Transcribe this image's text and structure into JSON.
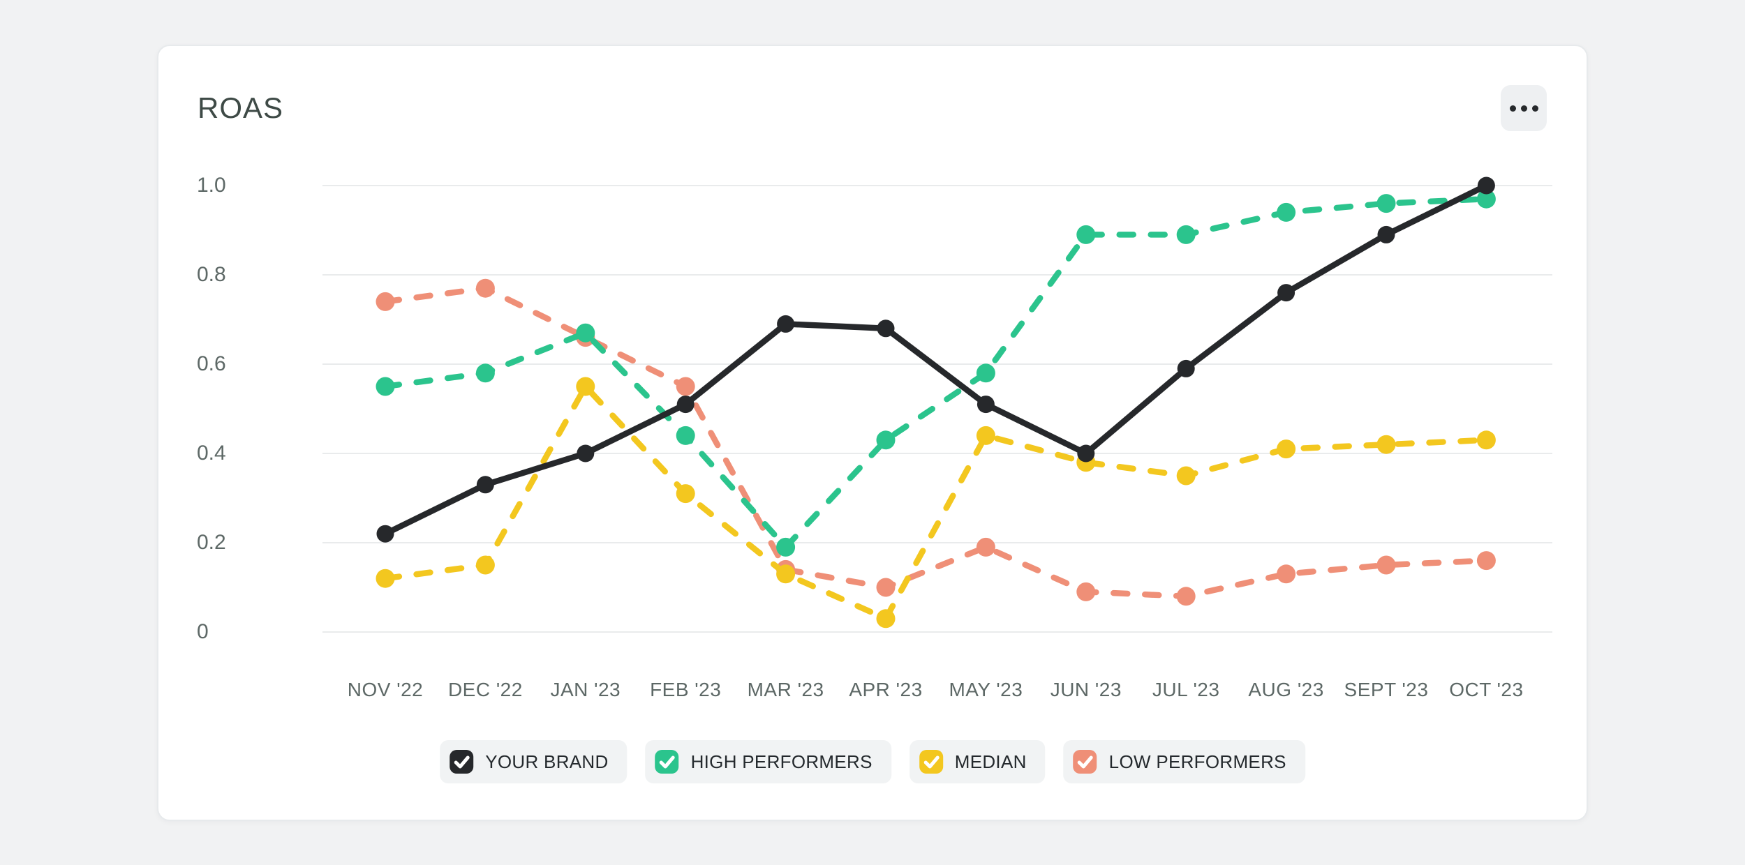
{
  "card": {
    "title": "ROAS"
  },
  "menu": {
    "icon": "ellipsis"
  },
  "chart_data": {
    "type": "line",
    "title": "ROAS",
    "categories": [
      "NOV '22",
      "DEC '22",
      "JAN '23",
      "FEB '23",
      "MAR '23",
      "APR '23",
      "MAY '23",
      "JUN '23",
      "JUL '23",
      "AUG '23",
      "SEPT '23",
      "OCT '23"
    ],
    "series": [
      {
        "name": "YOUR BRAND",
        "color": "#26282b",
        "line_style": "solid",
        "values": [
          0.22,
          0.33,
          0.4,
          0.51,
          0.69,
          0.68,
          0.51,
          0.4,
          0.59,
          0.76,
          0.89,
          1.0
        ]
      },
      {
        "name": "HIGH PERFORMERS",
        "color": "#2bc48d",
        "line_style": "dashed",
        "values": [
          0.55,
          0.58,
          0.67,
          0.44,
          0.19,
          0.43,
          0.58,
          0.89,
          0.89,
          0.94,
          0.96,
          0.97
        ]
      },
      {
        "name": "MEDIAN",
        "color": "#f3c71f",
        "line_style": "dashed",
        "values": [
          0.12,
          0.15,
          0.55,
          0.31,
          0.13,
          0.03,
          0.44,
          0.38,
          0.35,
          0.41,
          0.42,
          0.43
        ]
      },
      {
        "name": "LOW PERFORMERS",
        "color": "#ef8f77",
        "line_style": "dashed",
        "values": [
          0.74,
          0.77,
          0.66,
          0.55,
          0.14,
          0.1,
          0.19,
          0.09,
          0.08,
          0.13,
          0.15,
          0.16
        ]
      }
    ],
    "xlabel": "",
    "ylabel": "",
    "ylim": [
      0,
      1.0
    ],
    "yticks": [
      0,
      0.2,
      0.4,
      0.6,
      0.8,
      1.0
    ],
    "ytick_labels": [
      "0",
      "0.2",
      "0.4",
      "0.6",
      "0.8",
      "1.0"
    ],
    "grid": "horizontal",
    "legend_position": "bottom"
  },
  "legend": {
    "check_glyph": "✓",
    "items": [
      {
        "label": "YOUR BRAND",
        "color": "#26282b",
        "checked": true
      },
      {
        "label": "HIGH PERFORMERS",
        "color": "#2bc48d",
        "checked": true
      },
      {
        "label": "MEDIAN",
        "color": "#f3c71f",
        "checked": true
      },
      {
        "label": "LOW PERFORMERS",
        "color": "#ef8f77",
        "checked": true
      }
    ]
  },
  "colors": {
    "page_bg": "#f1f2f3",
    "card_bg": "#ffffff",
    "card_border": "#e7eaec",
    "gridline": "#e9ebec",
    "axis_label": "#5d6866",
    "title": "#3e4a46",
    "legend_pill_bg": "#f1f3f4",
    "legend_label": "#24292d",
    "menu_button_bg": "#eef0f2",
    "menu_dots": "#26292c"
  }
}
